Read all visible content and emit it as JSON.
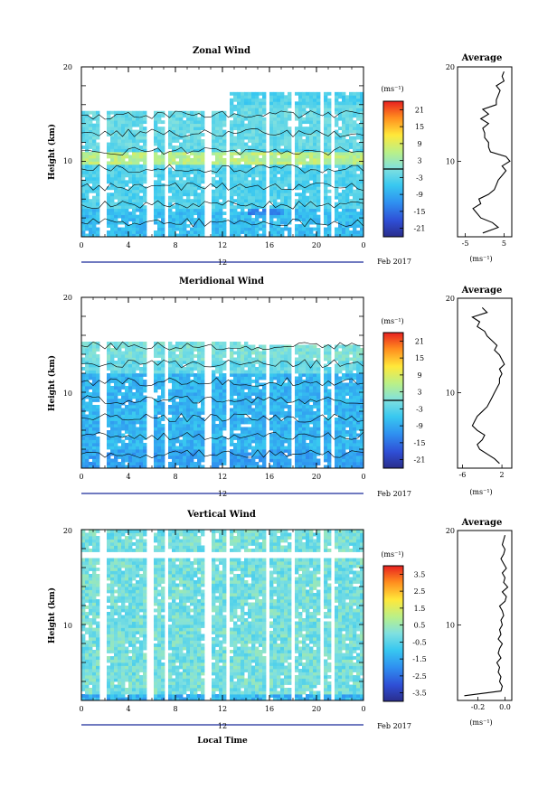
{
  "figure": {
    "date_label": "Feb 2017",
    "day_label": "12",
    "xlabel": "Local Time",
    "xticks": [
      "0",
      "4",
      "8",
      "12",
      "16",
      "20",
      "0"
    ]
  },
  "chart_data": [
    {
      "type": "heatmap",
      "title": "Zonal Wind",
      "ylabel": "Height (km)",
      "xlabel": "",
      "xlim": [
        0,
        24
      ],
      "ylim": [
        2,
        20
      ],
      "yticks": [
        "20",
        "10"
      ],
      "colorbar": {
        "unit": "(ms⁻¹)",
        "ticks": [
          "21",
          "15",
          "9",
          "3",
          "-3",
          "-9",
          "-15",
          "-21"
        ],
        "range": [
          -24,
          24
        ],
        "zero_line": 0
      },
      "profile": {
        "title": "Average",
        "xlabel": "(ms⁻¹)",
        "xticks": [
          "-5",
          "5"
        ],
        "xlim": [
          -7,
          7
        ],
        "ylim": [
          2,
          20
        ],
        "yticks": [
          "20",
          "10"
        ],
        "height": [
          2.4,
          3,
          3.5,
          4,
          4.5,
          5,
          5.5,
          6,
          6.5,
          7,
          7.5,
          8,
          8.5,
          9,
          9.5,
          10,
          10.5,
          11,
          11.5,
          12,
          12.5,
          13,
          13.5,
          14,
          14.5,
          15,
          15.5,
          16,
          16.5,
          17,
          17.5,
          18,
          18.5,
          19,
          19.5
        ],
        "speed": [
          -0.5,
          3.5,
          2,
          -1,
          -2,
          -3,
          -1,
          -1.5,
          1,
          2.5,
          3,
          3.5,
          4.5,
          5.5,
          4.5,
          6.5,
          5.5,
          1.5,
          1,
          1,
          0,
          0,
          -0.5,
          1,
          -1,
          1,
          -0.5,
          3,
          3,
          3.5,
          4,
          3,
          5,
          4.5,
          5
        ]
      }
    },
    {
      "type": "heatmap",
      "title": "Meridional Wind",
      "ylabel": "Height (km)",
      "xlabel": "",
      "xlim": [
        0,
        24
      ],
      "ylim": [
        2,
        20
      ],
      "yticks": [
        "20",
        "10"
      ],
      "colorbar": {
        "unit": "(ms⁻¹)",
        "ticks": [
          "21",
          "15",
          "9",
          "3",
          "-3",
          "-9",
          "-15",
          "-21"
        ],
        "range": [
          -24,
          24
        ],
        "zero_line": 0
      },
      "profile": {
        "title": "Average",
        "xlabel": "(ms⁻¹)",
        "xticks": [
          "-6",
          "2"
        ],
        "xlim": [
          -7,
          4
        ],
        "ylim": [
          2,
          20
        ],
        "yticks": [
          "20",
          "10"
        ],
        "height": [
          2.5,
          3,
          3.5,
          4,
          4.5,
          5,
          5.5,
          6,
          6.5,
          7,
          7.5,
          8,
          8.5,
          9,
          9.5,
          10,
          10.5,
          11,
          11.5,
          12,
          12.5,
          13,
          13.5,
          14,
          14.5,
          15,
          15.5,
          16,
          16.5,
          17,
          17.5,
          18,
          18.5,
          19
        ],
        "speed": [
          1.5,
          0.5,
          -1,
          -2.5,
          -3,
          -2,
          -1.5,
          -3,
          -4,
          -3.5,
          -3,
          -2,
          -1,
          -0.5,
          0,
          0.5,
          1,
          1.5,
          1.5,
          2,
          1.5,
          2.5,
          2,
          1.5,
          0.5,
          1,
          0,
          -1,
          -1.5,
          -3,
          -2.5,
          -4,
          -1,
          -2
        ]
      }
    },
    {
      "type": "heatmap",
      "title": "Vertical Wind",
      "ylabel": "Height (km)",
      "xlabel": "Local Time",
      "xlim": [
        0,
        24
      ],
      "ylim": [
        2,
        20
      ],
      "yticks": [
        "20",
        "10"
      ],
      "colorbar": {
        "unit": "(ms⁻¹)",
        "ticks": [
          "3.5",
          "2.5",
          "1.5",
          "0.5",
          "-0.5",
          "-1.5",
          "-2.5",
          "-3.5"
        ],
        "range": [
          -4,
          4
        ]
      },
      "profile": {
        "title": "Average",
        "xlabel": "(ms⁻¹)",
        "xticks": [
          "-0.2",
          "0.0"
        ],
        "xlim": [
          -0.35,
          0.05
        ],
        "ylim": [
          2,
          20
        ],
        "yticks": [
          "20",
          "10"
        ],
        "height": [
          2.5,
          3,
          3.5,
          4,
          4.5,
          5,
          5.5,
          6,
          6.5,
          7,
          7.5,
          8,
          8.5,
          9,
          9.5,
          10,
          10.5,
          11,
          11.5,
          12,
          12.5,
          13,
          13.5,
          14,
          14.5,
          15,
          15.5,
          16,
          16.5,
          17,
          17.5,
          18,
          18.5,
          19,
          19.5
        ],
        "speed": [
          -0.3,
          -0.03,
          -0.02,
          -0.04,
          -0.03,
          -0.05,
          -0.04,
          -0.06,
          -0.03,
          -0.05,
          -0.04,
          -0.02,
          -0.05,
          -0.03,
          -0.04,
          -0.02,
          -0.03,
          -0.01,
          -0.02,
          -0.04,
          0.0,
          0.01,
          -0.02,
          0.02,
          -0.01,
          0.0,
          -0.02,
          0.01,
          -0.01,
          -0.03,
          -0.01,
          0.0,
          -0.02,
          -0.01,
          0.0
        ]
      }
    }
  ]
}
